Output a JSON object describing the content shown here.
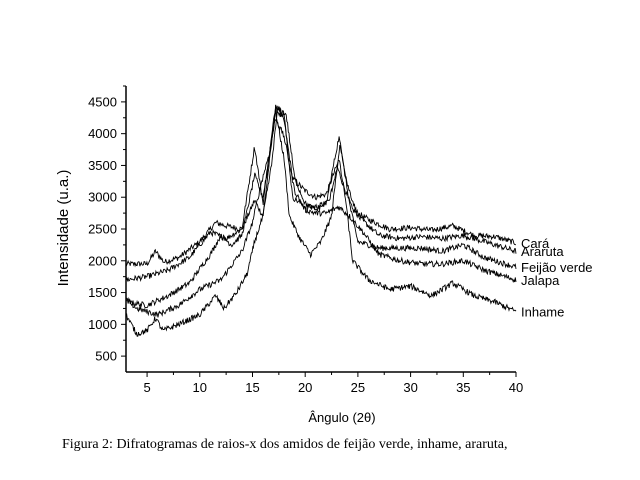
{
  "caption": "Figura 2: Difratogramas de raios-x dos amidos de feijão verde, inhame, araruta,",
  "chart_data": {
    "type": "line",
    "title": "",
    "xlabel": "Ângulo (2θ)",
    "ylabel": "Intensidade (u.a.)",
    "xlim": [
      3,
      40
    ],
    "ylim": [
      250,
      4750
    ],
    "xticks": [
      5,
      10,
      15,
      20,
      25,
      30,
      35,
      40
    ],
    "yticks": [
      500,
      1000,
      1500,
      2000,
      2500,
      3000,
      3500,
      4000,
      4500
    ],
    "grid": false,
    "legend": "labels at right end of each curve",
    "series": [
      {
        "name": "Cará",
        "points": [
          [
            3,
            1950
          ],
          [
            5,
            1950
          ],
          [
            5.8,
            2150
          ],
          [
            6.6,
            1980
          ],
          [
            8,
            2050
          ],
          [
            10,
            2300
          ],
          [
            11.5,
            2600
          ],
          [
            12.5,
            2550
          ],
          [
            14,
            2500
          ],
          [
            15.2,
            2950
          ],
          [
            16,
            2700
          ],
          [
            17.2,
            4400
          ],
          [
            18,
            4200
          ],
          [
            18.8,
            3300
          ],
          [
            20,
            3100
          ],
          [
            21,
            3000
          ],
          [
            22,
            3050
          ],
          [
            23,
            3500
          ],
          [
            23.6,
            3200
          ],
          [
            24.5,
            2800
          ],
          [
            26,
            2650
          ],
          [
            28,
            2500
          ],
          [
            30,
            2520
          ],
          [
            32,
            2480
          ],
          [
            34,
            2550
          ],
          [
            36,
            2400
          ],
          [
            38,
            2380
          ],
          [
            40,
            2280
          ]
        ]
      },
      {
        "name": "Araruta",
        "points": [
          [
            3,
            1700
          ],
          [
            5,
            1750
          ],
          [
            7,
            1850
          ],
          [
            9,
            2050
          ],
          [
            11,
            2450
          ],
          [
            12.5,
            2350
          ],
          [
            14,
            2500
          ],
          [
            15.2,
            3800
          ],
          [
            16,
            2900
          ],
          [
            17.2,
            4450
          ],
          [
            18,
            4300
          ],
          [
            18.8,
            3000
          ],
          [
            20,
            2850
          ],
          [
            21,
            2850
          ],
          [
            22,
            2900
          ],
          [
            23.2,
            3950
          ],
          [
            24,
            3200
          ],
          [
            25,
            2700
          ],
          [
            27,
            2400
          ],
          [
            29,
            2350
          ],
          [
            31,
            2380
          ],
          [
            33,
            2350
          ],
          [
            35,
            2400
          ],
          [
            37,
            2300
          ],
          [
            40,
            2150
          ]
        ]
      },
      {
        "name": "Feijão verde",
        "points": [
          [
            3,
            1350
          ],
          [
            5,
            1300
          ],
          [
            7,
            1450
          ],
          [
            9,
            1650
          ],
          [
            11,
            2100
          ],
          [
            12,
            2400
          ],
          [
            13,
            2250
          ],
          [
            14,
            2400
          ],
          [
            15.2,
            3350
          ],
          [
            16,
            3000
          ],
          [
            17.2,
            4350
          ],
          [
            18,
            3600
          ],
          [
            18.5,
            2700
          ],
          [
            19.5,
            2350
          ],
          [
            20.5,
            2100
          ],
          [
            21.5,
            2300
          ],
          [
            22.5,
            2700
          ],
          [
            23.3,
            3850
          ],
          [
            24.2,
            2900
          ],
          [
            25,
            2300
          ],
          [
            27,
            2200
          ],
          [
            29,
            2200
          ],
          [
            31,
            2200
          ],
          [
            33,
            2150
          ],
          [
            35,
            2250
          ],
          [
            37,
            2050
          ],
          [
            40,
            1900
          ]
        ]
      },
      {
        "name": "Jalapa",
        "points": [
          [
            3,
            1400
          ],
          [
            4,
            1250
          ],
          [
            5,
            1200
          ],
          [
            6,
            1150
          ],
          [
            8,
            1300
          ],
          [
            10,
            1550
          ],
          [
            12,
            1700
          ],
          [
            14,
            2150
          ],
          [
            15,
            2600
          ],
          [
            15.8,
            3200
          ],
          [
            16.6,
            3700
          ],
          [
            17.2,
            4250
          ],
          [
            18,
            3950
          ],
          [
            19,
            3100
          ],
          [
            20,
            2800
          ],
          [
            21,
            2750
          ],
          [
            22,
            2750
          ],
          [
            23.2,
            2850
          ],
          [
            24.2,
            2700
          ],
          [
            25.5,
            2450
          ],
          [
            27,
            2100
          ],
          [
            29,
            2000
          ],
          [
            31,
            1950
          ],
          [
            33,
            1950
          ],
          [
            35,
            2000
          ],
          [
            37,
            1850
          ],
          [
            40,
            1700
          ]
        ]
      },
      {
        "name": "Inhame",
        "points": [
          [
            3,
            1150
          ],
          [
            4,
            850
          ],
          [
            5,
            900
          ],
          [
            5.8,
            1100
          ],
          [
            6.5,
            900
          ],
          [
            8,
            1000
          ],
          [
            10,
            1150
          ],
          [
            11.5,
            1450
          ],
          [
            12.3,
            1250
          ],
          [
            13.5,
            1500
          ],
          [
            14.5,
            1800
          ],
          [
            15.2,
            2300
          ],
          [
            16,
            2700
          ],
          [
            16.8,
            3500
          ],
          [
            17.4,
            4400
          ],
          [
            18.2,
            4300
          ],
          [
            19,
            3300
          ],
          [
            20,
            2900
          ],
          [
            21,
            2800
          ],
          [
            22.3,
            2950
          ],
          [
            23.2,
            3600
          ],
          [
            23.8,
            3000
          ],
          [
            24.5,
            2000
          ],
          [
            26,
            1700
          ],
          [
            28,
            1550
          ],
          [
            30,
            1600
          ],
          [
            32,
            1450
          ],
          [
            34,
            1650
          ],
          [
            36,
            1450
          ],
          [
            38,
            1350
          ],
          [
            40,
            1200
          ]
        ]
      }
    ]
  }
}
